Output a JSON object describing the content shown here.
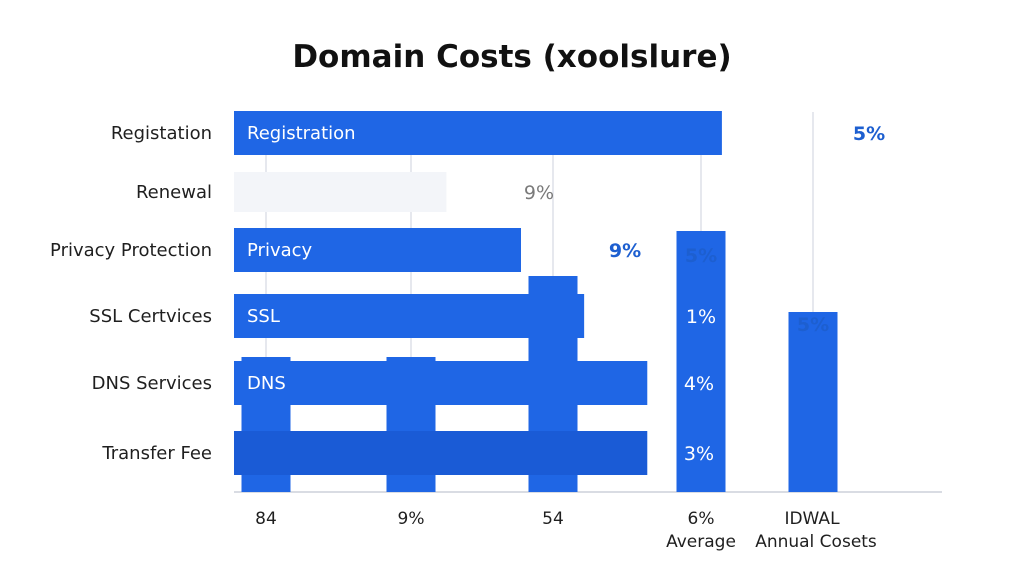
{
  "chart_data": {
    "type": "bar",
    "orientation": "horizontal",
    "title": "Domain Costs (xoolslure)",
    "xlabel": "",
    "ylabel": "",
    "xlim": [
      0,
      100
    ],
    "grid": true,
    "categories": [
      "Registation",
      "Renewal",
      "Privacy Protection",
      "SSL Certvices",
      "DNS Services",
      "Transfer Fee"
    ],
    "bar_labels": [
      "Registration",
      "",
      "Privacy",
      "SSL",
      "DNS",
      ""
    ],
    "values": [
      85,
      37,
      50,
      61,
      72,
      72
    ],
    "value_labels": [
      "5%",
      "9%",
      "9%",
      "1%",
      "4%",
      "3%"
    ],
    "x_ticks": [
      {
        "line1": "84",
        "line2": ""
      },
      {
        "line1": "9%",
        "line2": ""
      },
      {
        "line1": "54",
        "line2": ""
      },
      {
        "line1": "6%",
        "line2": "Average"
      },
      {
        "line1": "IDWAL",
        "line2": "Annual Cosets"
      }
    ],
    "columns": [
      {
        "value": 15,
        "label": ""
      },
      {
        "value": 15,
        "label": ""
      },
      {
        "value": 24,
        "label": ""
      },
      {
        "value": 29,
        "label": "5%"
      },
      {
        "value": 20,
        "label": "5%"
      }
    ],
    "colors": {
      "bar": "#1f66e5",
      "bar_dark": "#1a5bd6",
      "bar_faint": "#f3f5f9",
      "value_blue": "#1d5fd0",
      "value_grey": "#7a7a7a"
    }
  }
}
